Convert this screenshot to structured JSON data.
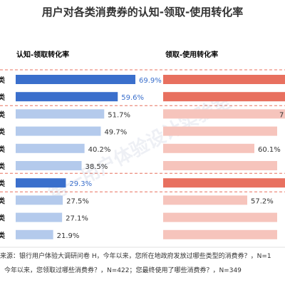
{
  "title": "用户对各类消费券的认知-领取-使用转化率",
  "colors": {
    "left_accent": "#3a6fcc",
    "left_light": "#b4caec",
    "right_accent": "#e8705f",
    "right_light": "#f6c4bc",
    "divider": "#e8705f",
    "left_label_text": "#3a6fcc",
    "right_label_text": "#e8705f"
  },
  "watermark": "第一用户体验设计实验室",
  "chart_data": [
    {
      "type": "bar",
      "title": "认知-领取转化率",
      "orientation": "horizontal",
      "category_labels": [
        "类",
        "类",
        "类",
        "类",
        "类",
        "类",
        "类",
        "类",
        "类",
        "类"
      ],
      "values": [
        69.9,
        59.6,
        51.7,
        49.7,
        40.2,
        38.5,
        29.3,
        27.5,
        27.1,
        21.9
      ],
      "value_labels": [
        "69.9%",
        "59.6%",
        "51.7%",
        "49.7%",
        "40.2%",
        "38.5%",
        "29.3%",
        "27.5%",
        "27.1%",
        "21.9%"
      ],
      "highlighted": [
        true,
        true,
        false,
        false,
        false,
        false,
        true,
        false,
        false,
        false
      ],
      "xlim": [
        0,
        80
      ]
    },
    {
      "type": "bar",
      "title": "领取-使用转化率",
      "orientation": "horizontal",
      "values": [
        null,
        null,
        null,
        null,
        60.1,
        null,
        null,
        57.2,
        null,
        null
      ],
      "value_labels": [
        "",
        "",
        "7",
        "",
        "60.1%",
        "",
        "",
        "57.2%",
        "",
        ""
      ],
      "highlighted": [
        true,
        true,
        false,
        false,
        false,
        false,
        true,
        false,
        false,
        false
      ]
    }
  ],
  "groups": [
    {
      "rows": [
        0,
        1
      ]
    },
    {
      "rows": [
        6
      ]
    }
  ],
  "source_lines": [
    "来源：银行用户体验大调研问卷 H，今年以来，您所在地政府发放过哪些类型的消费券？，N=1",
    "今年以来，您领取过哪些消费券？，N=422；您最终使用了哪些消费券？，N=349"
  ]
}
